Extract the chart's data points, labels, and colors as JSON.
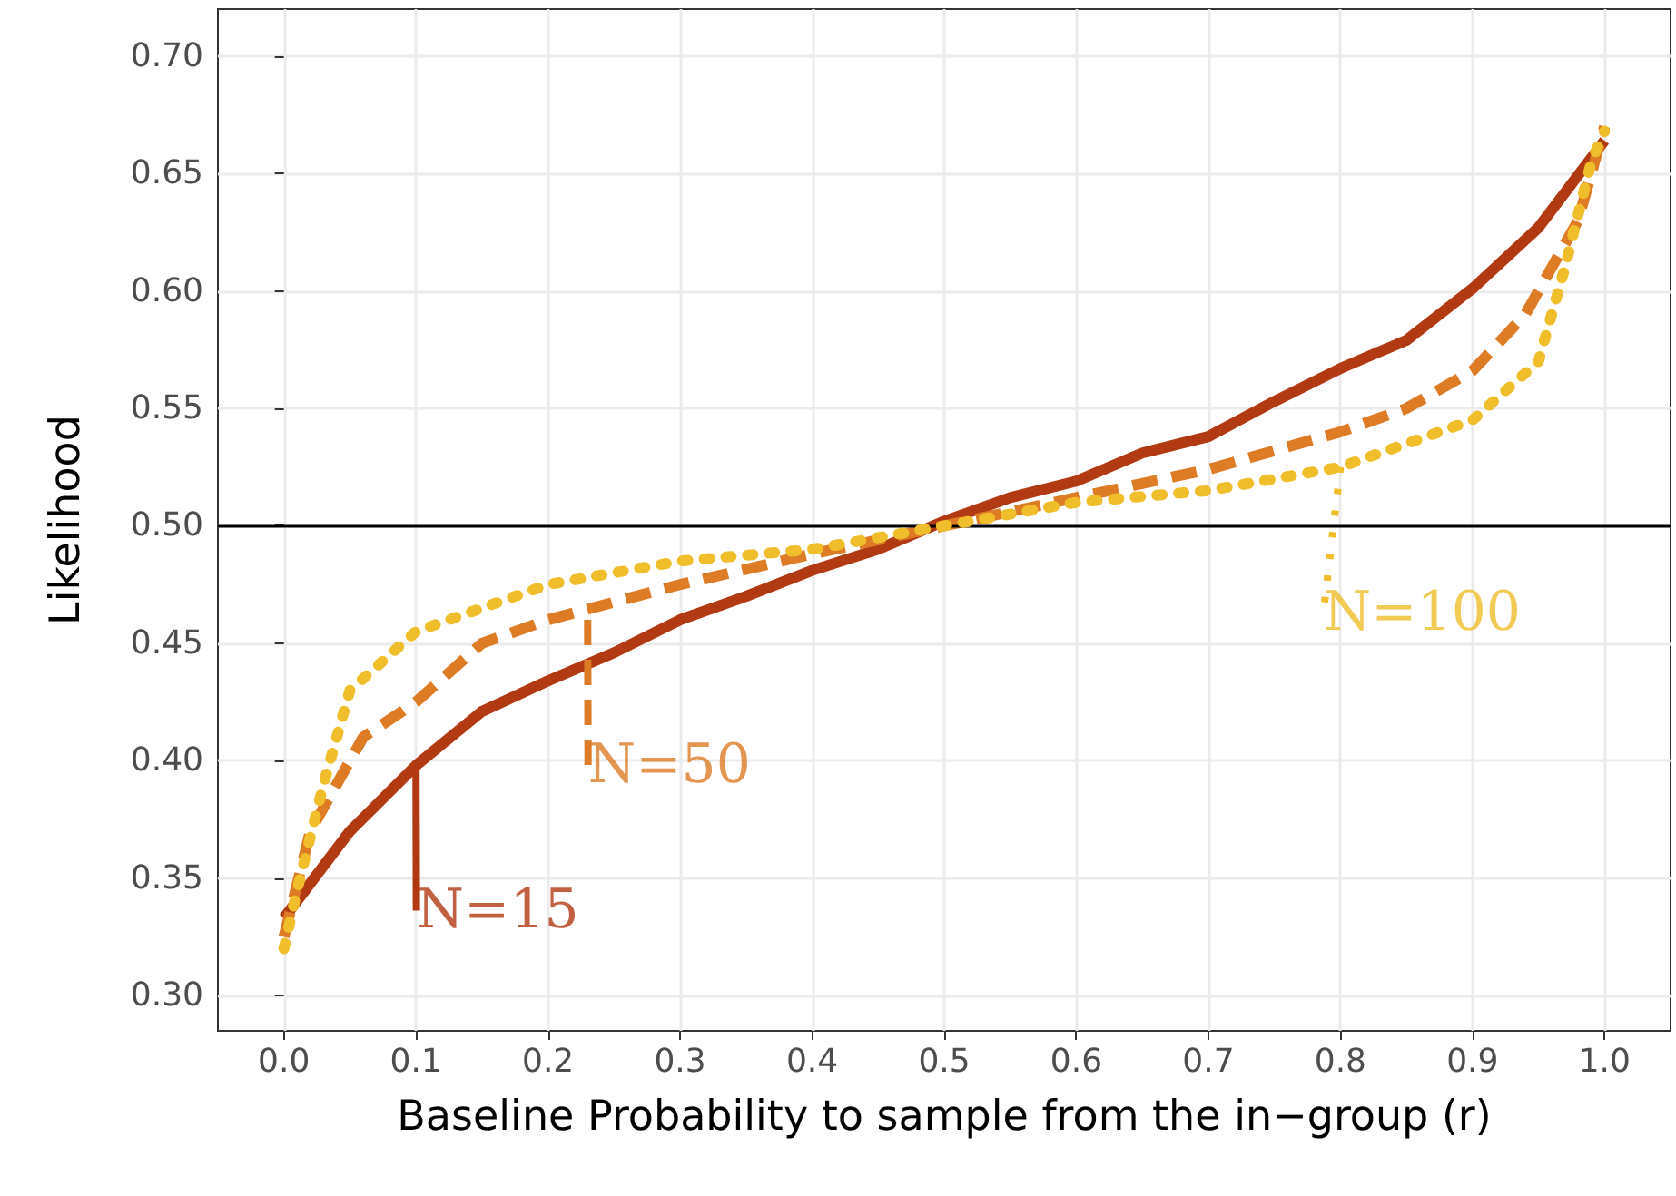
{
  "chart_data": {
    "type": "line",
    "xlabel": "Baseline Probability to sample from the in−group (r)",
    "ylabel": "Likelihood",
    "xlim": [
      -0.05,
      1.05
    ],
    "xticks": [
      {
        "value": 0,
        "label": "0.0"
      },
      0.1,
      0.2,
      0.3,
      0.4,
      0.5,
      0.6,
      0.7,
      0.8,
      0.9,
      {
        "value": 1,
        "label": "1.0"
      }
    ],
    "ylim": [
      0.285,
      0.72
    ],
    "yticks": [
      {
        "value": 0.3,
        "label": "0.30"
      },
      0.35,
      {
        "value": 0.4,
        "label": "0.40"
      },
      0.45,
      {
        "value": 0.5,
        "label": "0.50"
      },
      0.55,
      {
        "value": 0.6,
        "label": "0.60"
      },
      0.65,
      {
        "value": 0.7,
        "label": "0.70"
      }
    ],
    "grid": true,
    "marker": "none",
    "series": [
      {
        "color": "#b23a12",
        "line_style": "solid",
        "x": [
          0,
          0.05,
          0.1,
          0.15,
          0.2,
          0.25,
          0.3,
          0.35,
          0.4,
          0.45,
          0.5,
          0.55,
          0.6,
          0.65,
          0.7,
          0.75,
          0.8,
          0.85,
          0.9,
          0.95,
          1
        ],
        "values": [
          0.333,
          0.37,
          0.398,
          0.421,
          0.434,
          0.446,
          0.46,
          0.47,
          0.481,
          0.49,
          0.502,
          0.512,
          0.519,
          0.531,
          0.538,
          0.553,
          0.567,
          0.579,
          0.601,
          0.627,
          0.664
        ]
      },
      {
        "color": "#dd7c25",
        "line_style": "dashed",
        "x": [
          0,
          0.02,
          0.06,
          0.1,
          0.15,
          0.2,
          0.3,
          0.4,
          0.5,
          0.6,
          0.7,
          0.8,
          0.85,
          0.9,
          0.94,
          0.98,
          1
        ],
        "values": [
          0.325,
          0.37,
          0.41,
          0.425,
          0.45,
          0.46,
          0.475,
          0.488,
          0.5,
          0.512,
          0.524,
          0.54,
          0.55,
          0.566,
          0.59,
          0.63,
          0.67
        ]
      },
      {
        "color": "#efbe2a",
        "line_style": "dotted",
        "x": [
          0,
          0.01,
          0.03,
          0.05,
          0.1,
          0.2,
          0.3,
          0.4,
          0.5,
          0.6,
          0.7,
          0.8,
          0.9,
          0.95,
          0.97,
          0.99,
          1
        ],
        "values": [
          0.32,
          0.345,
          0.39,
          0.43,
          0.455,
          0.475,
          0.485,
          0.49,
          0.5,
          0.51,
          0.515,
          0.525,
          0.545,
          0.57,
          0.61,
          0.655,
          0.668
        ]
      }
    ],
    "ref_lines": [
      {
        "axis": "y",
        "value": 0.5,
        "color": "#000000"
      }
    ],
    "annotations": [
      {
        "text": "N=15",
        "x": 0.1,
        "y": 0.398
      },
      {
        "text": "N=50",
        "x": 0.23,
        "y": 0.46
      },
      {
        "text": "N=100",
        "x": 0.8,
        "y": 0.525
      }
    ]
  }
}
